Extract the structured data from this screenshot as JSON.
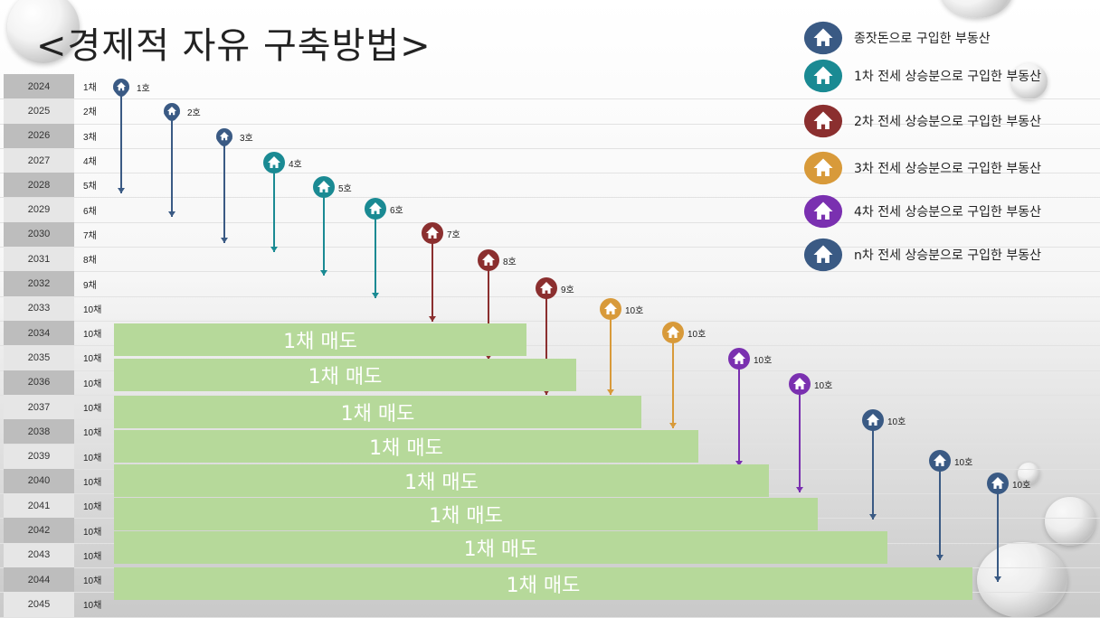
{
  "title": "<경제적 자유 구축방법>",
  "years": [
    "2024",
    "2025",
    "2026",
    "2027",
    "2028",
    "2029",
    "2030",
    "2031",
    "2032",
    "2033",
    "2034",
    "2035",
    "2036",
    "2037",
    "2038",
    "2039",
    "2040",
    "2041",
    "2042",
    "2043",
    "2044",
    "2045"
  ],
  "counts": [
    "1채",
    "2채",
    "3채",
    "4채",
    "5채",
    "6채",
    "7채",
    "8채",
    "9채",
    "10채",
    "10채",
    "10채",
    "10채",
    "10채",
    "10채",
    "10채",
    "10채",
    "10채",
    "10채",
    "10채",
    "10채",
    "10채"
  ],
  "pins": [
    {
      "label": "1호",
      "color": "#3a5a84"
    },
    {
      "label": "2호",
      "color": "#3a5a84"
    },
    {
      "label": "3호",
      "color": "#3a5a84"
    },
    {
      "label": "4호",
      "color": "#1a8a93"
    },
    {
      "label": "5호",
      "color": "#1a8a93"
    },
    {
      "label": "6호",
      "color": "#1a8a93"
    },
    {
      "label": "7호",
      "color": "#8b2f2f"
    },
    {
      "label": "8호",
      "color": "#8b2f2f"
    },
    {
      "label": "9호",
      "color": "#8b2f2f"
    },
    {
      "label": "10호",
      "color": "#d89a3a"
    },
    {
      "label": "10호",
      "color": "#d89a3a"
    },
    {
      "label": "10호",
      "color": "#7a30b0"
    },
    {
      "label": "10호",
      "color": "#7a30b0"
    },
    {
      "label": "10호",
      "color": "#3a5a84"
    },
    {
      "label": "10호",
      "color": "#3a5a84"
    },
    {
      "label": "10호",
      "color": "#3a5a84"
    }
  ],
  "bars": [
    "1채 매도",
    "1채 매도",
    "1채 매도",
    "1채 매도",
    "1채 매도",
    "1채 매도",
    "1채 매도",
    "1채 매도"
  ],
  "legend": [
    {
      "text": "종잣돈으로 구입한 부동산",
      "color": "#3a5a84"
    },
    {
      "text": "1차 전세 상승분으로 구입한 부동산",
      "color": "#1a8a93"
    },
    {
      "text": "2차 전세 상승분으로 구입한 부동산",
      "color": "#8b2f2f"
    },
    {
      "text": "3차 전세 상승분으로 구입한 부동산",
      "color": "#d89a3a"
    },
    {
      "text": "4차 전세 상승분으로 구입한 부동산",
      "color": "#7a30b0"
    },
    {
      "text": "n차 전세 상승분으로 구입한 부동산",
      "color": "#3a5a84"
    }
  ]
}
